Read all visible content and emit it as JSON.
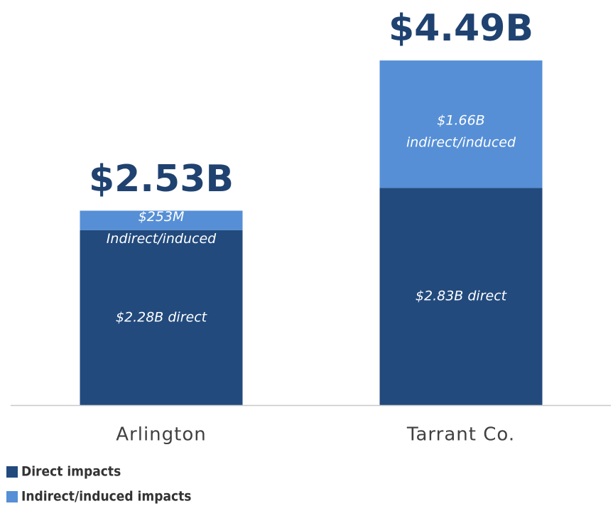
{
  "chart_data": {
    "type": "stacked_bar",
    "categories": [
      "Arlington",
      "Tarrant Co."
    ],
    "series": [
      {
        "name": "Direct impacts",
        "color": "#224a7d",
        "values": [
          2.28,
          2.83
        ],
        "value_labels": [
          "$2.28B direct",
          "$2.83B direct"
        ]
      },
      {
        "name": "Indirect/induced impacts",
        "color": "#568fd6",
        "values": [
          0.253,
          1.66
        ],
        "value_labels": [
          "$253M\nIndirect/induced",
          "$1.66B\nindirect/induced"
        ]
      }
    ],
    "totals": {
      "values": [
        2.53,
        4.49
      ],
      "value_labels": [
        "$2.53B",
        "$4.49B"
      ]
    },
    "ylim": [
      0,
      5
    ],
    "grid": false,
    "legend": "bottom-left"
  }
}
